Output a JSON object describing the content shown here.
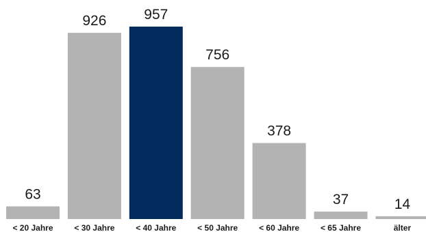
{
  "chart_data": {
    "type": "bar",
    "categories": [
      "< 20 Jahre",
      "< 30 Jahre",
      "< 40 Jahre",
      "< 50 Jahre",
      "< 60 Jahre",
      "< 65 Jahre",
      "älter"
    ],
    "values": [
      63,
      926,
      957,
      756,
      378,
      37,
      14
    ],
    "data_labels": [
      "63",
      "926",
      "957",
      "756",
      "378",
      "37",
      "14"
    ],
    "ylim": [
      0,
      1000
    ],
    "grid": false,
    "legend": "none",
    "colors": {
      "default": "#b3b3b3",
      "highlight": "#002b5c"
    },
    "highlight_index": 2
  }
}
